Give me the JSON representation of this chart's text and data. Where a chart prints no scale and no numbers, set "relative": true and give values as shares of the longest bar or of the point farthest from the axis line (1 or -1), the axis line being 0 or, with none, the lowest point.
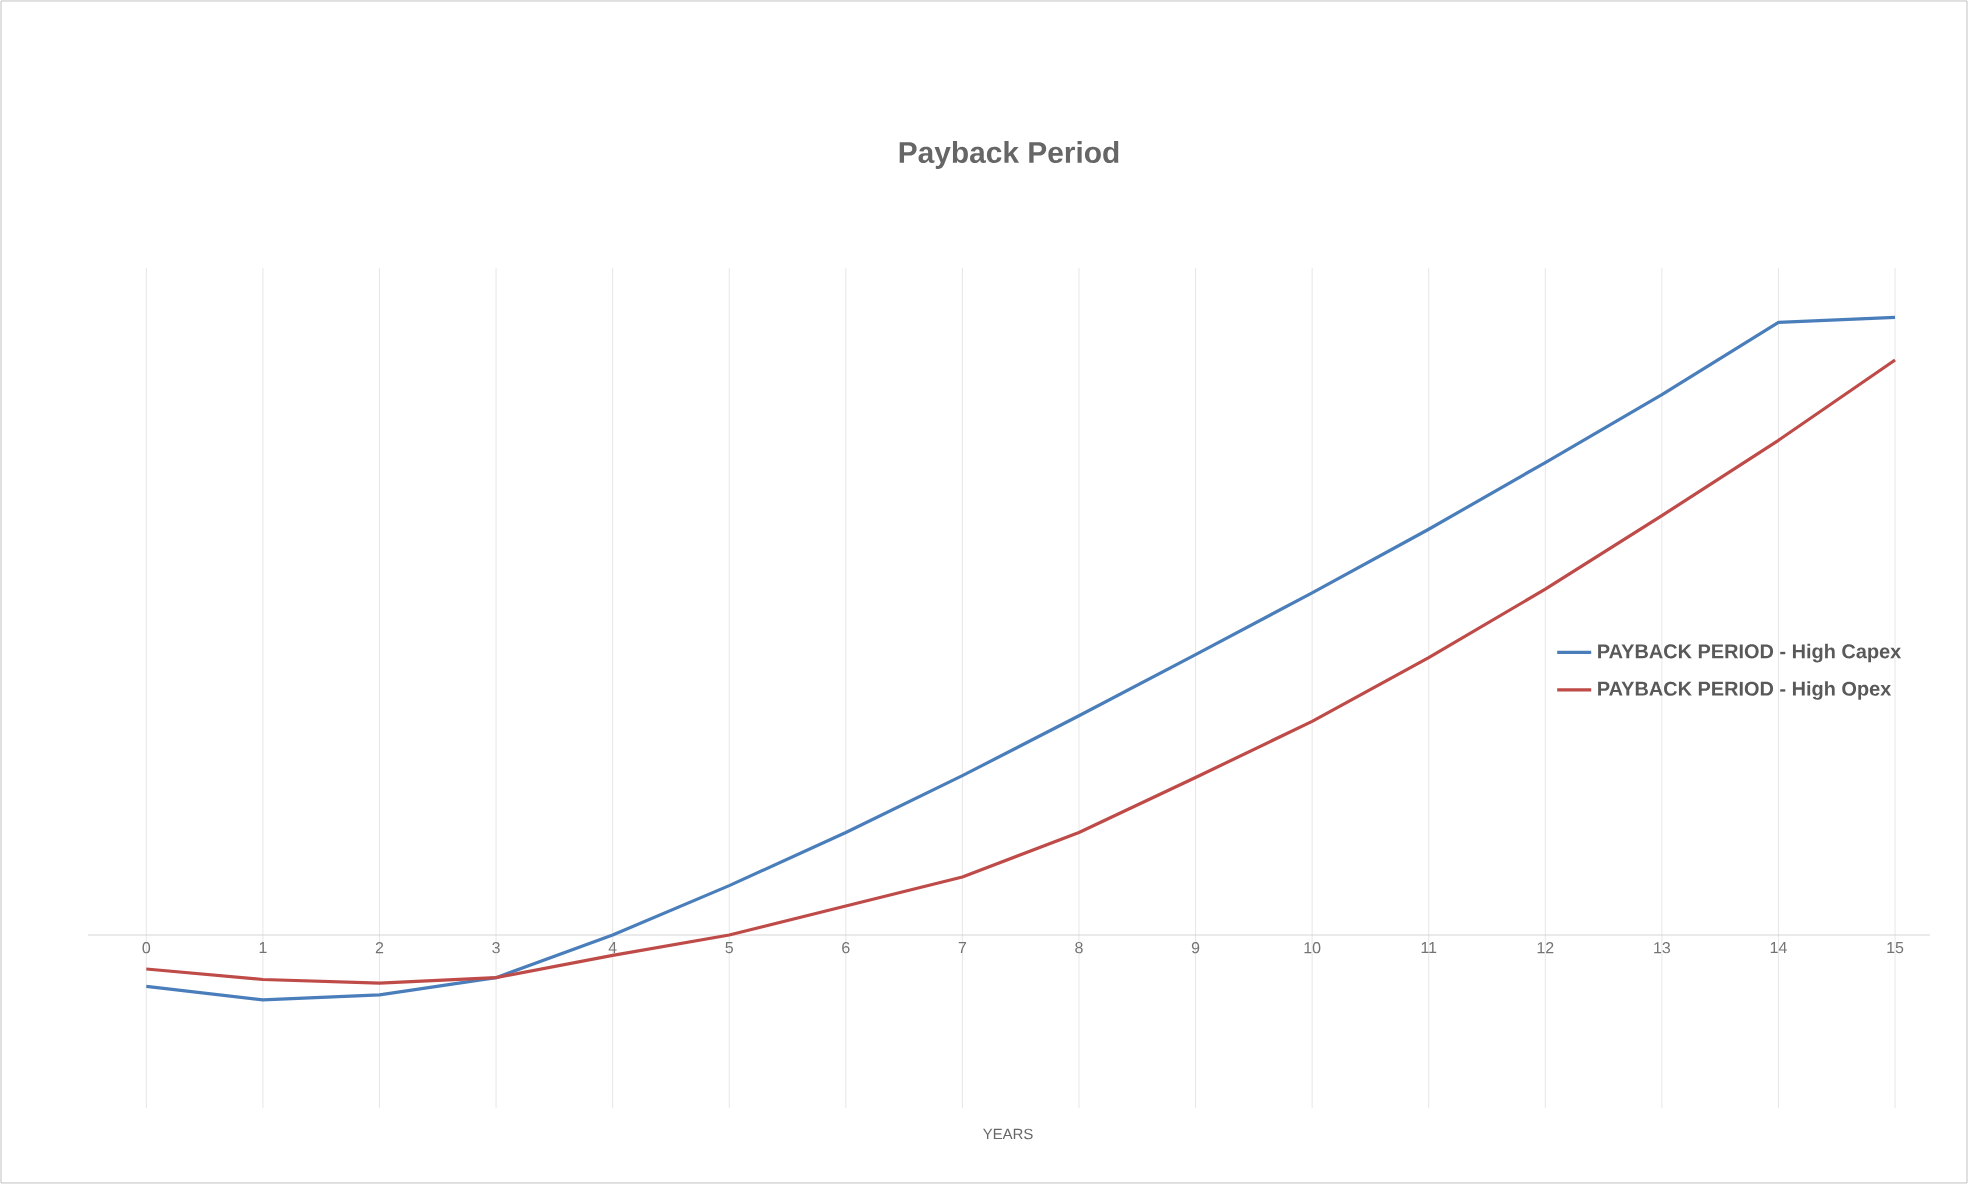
{
  "chart_data": {
    "type": "line",
    "title": "Payback  Period",
    "annotations": [
      "YEARS"
    ],
    "relative": true,
    "grid": "x",
    "legend": "right",
    "marker": "none",
    "categories": [
      "0",
      "1",
      "2",
      "3",
      "4",
      "5",
      "6",
      "7",
      "8",
      "9",
      "10",
      "11",
      "12",
      "13",
      "14",
      "15"
    ],
    "series": [
      {
        "name": "PAYBACK PERIOD - High Capex",
        "color": "#4a7ebb",
        "values": [
          -0.083,
          -0.105,
          -0.097,
          -0.069,
          0,
          0.08,
          0.166,
          0.258,
          0.355,
          0.454,
          0.554,
          0.657,
          0.765,
          0.875,
          0.992,
          1
        ]
      },
      {
        "name": "PAYBACK PERIOD - High Opex",
        "color": "#be4b48",
        "values": [
          -0.055,
          -0.072,
          -0.078,
          -0.069,
          -0.033,
          0,
          0.047,
          0.094,
          0.166,
          0.255,
          0.346,
          0.449,
          0.56,
          0.679,
          0.801,
          0.931
        ]
      }
    ]
  }
}
